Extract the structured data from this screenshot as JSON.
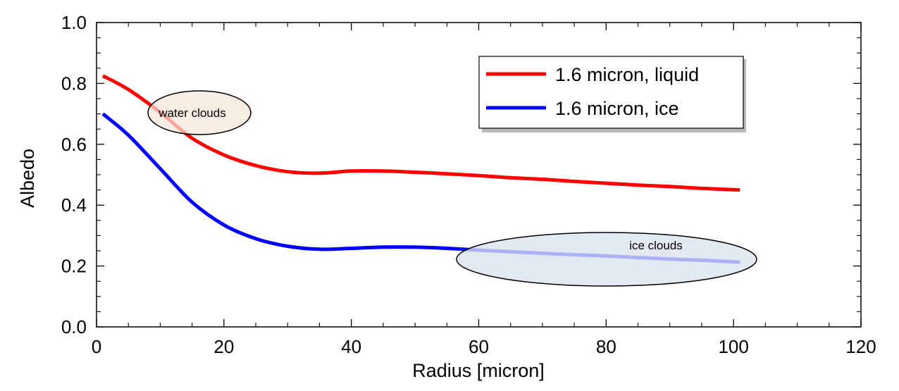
{
  "chart_data": {
    "type": "line",
    "title": "",
    "xlabel": "Radius [micron]",
    "ylabel": "Albedo",
    "xlim": [
      0,
      120
    ],
    "ylim": [
      0.0,
      1.0
    ],
    "x_ticks": [
      0,
      20,
      40,
      60,
      80,
      100,
      120
    ],
    "x_tick_labels": [
      "0",
      "20",
      "40",
      "60",
      "80",
      "100",
      "120"
    ],
    "y_ticks": [
      0.0,
      0.2,
      0.4,
      0.6,
      0.8,
      1.0
    ],
    "y_tick_labels": [
      "0.0",
      "0.2",
      "0.4",
      "0.6",
      "0.8",
      "1.0"
    ],
    "grid": false,
    "legend_position": "top-right",
    "series": [
      {
        "name": "1.6 micron, liquid",
        "color": "#ff0000",
        "x": [
          1,
          5,
          10,
          15,
          20,
          25,
          30,
          35,
          40,
          45,
          50,
          55,
          60,
          65,
          70,
          75,
          80,
          85,
          90,
          95,
          101
        ],
        "y": [
          0.825,
          0.78,
          0.705,
          0.62,
          0.565,
          0.53,
          0.51,
          0.505,
          0.512,
          0.512,
          0.508,
          0.503,
          0.497,
          0.49,
          0.485,
          0.478,
          0.472,
          0.466,
          0.461,
          0.455,
          0.45
        ]
      },
      {
        "name": "1.6 micron, ice",
        "color": "#0000ff",
        "x": [
          1,
          5,
          10,
          15,
          20,
          25,
          30,
          35,
          40,
          45,
          50,
          55,
          60,
          65,
          70,
          75,
          80,
          85,
          90,
          95,
          101
        ],
        "y": [
          0.7,
          0.63,
          0.52,
          0.41,
          0.335,
          0.29,
          0.265,
          0.255,
          0.258,
          0.262,
          0.262,
          0.258,
          0.252,
          0.247,
          0.242,
          0.237,
          0.233,
          0.228,
          0.223,
          0.219,
          0.213
        ]
      }
    ],
    "annotations": [
      {
        "text": "water clouds",
        "fill": "#f5e6d8"
      },
      {
        "text": "ice clouds",
        "fill": "#dbe3f0"
      }
    ]
  }
}
